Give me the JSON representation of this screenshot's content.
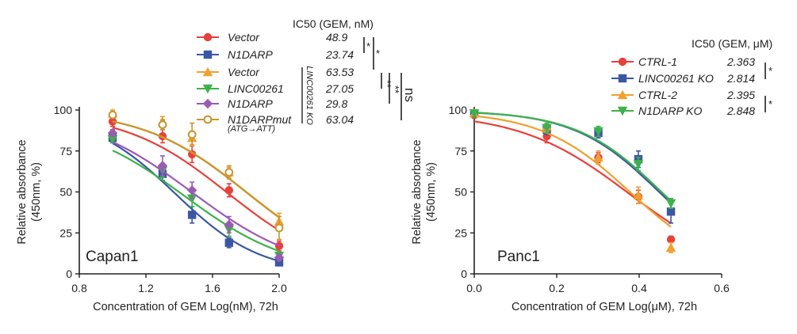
{
  "chart_data": [
    {
      "type": "line",
      "panel_label": "Capan1",
      "title": "",
      "xlabel": "Concentration of GEM Log(nM), 72h",
      "ylabel_line1": "Relative absorbance",
      "ylabel_line2": "(450nm, %)",
      "xlim": [
        0.8,
        2.0
      ],
      "ylim": [
        0,
        100
      ],
      "xticks": [
        "0.8",
        "1.2",
        "1.6",
        "2.0"
      ],
      "yticks": [
        "0",
        "25",
        "50",
        "75",
        "100"
      ],
      "legend_title": "IC50 (GEM, nM)",
      "group_label": "LINC00261 KO",
      "mut_note": "(ATG→ATT)",
      "x": [
        1.0,
        1.3,
        1.477,
        1.699,
        2.0
      ],
      "series": [
        {
          "name": "Vector",
          "ic50": "48.9",
          "color": "#e8403a",
          "marker": "circle",
          "values": [
            93,
            84,
            73,
            51,
            17
          ],
          "errors": [
            3,
            4,
            5,
            4,
            3
          ],
          "fit": {
            "top": 99,
            "bottom": 0,
            "logic50": 1.689,
            "hill": 1.4
          }
        },
        {
          "name": "N1DARP",
          "ic50": "23.74",
          "color": "#3b56a5",
          "marker": "square",
          "values": [
            83,
            61,
            36,
            19,
            7
          ],
          "errors": [
            3,
            4,
            5,
            3,
            2
          ],
          "fit": {
            "top": 98,
            "bottom": 0,
            "logic50": 1.376,
            "hill": 1.7
          }
        },
        {
          "name": "Vector",
          "ic50": "63.53",
          "color": "#f0a030",
          "marker": "triangle",
          "values": [
            98,
            93,
            83,
            62,
            32
          ],
          "errors": [
            2,
            3,
            4,
            3,
            5
          ],
          "fit": {
            "top": 100,
            "bottom": 0,
            "logic50": 1.803,
            "hill": 1.4
          }
        },
        {
          "name": "LINC00261",
          "ic50": "27.05",
          "color": "#3cb249",
          "marker": "triangle-down",
          "values": [
            82,
            63,
            46,
            27,
            11
          ],
          "errors": [
            2,
            4,
            5,
            4,
            2
          ],
          "fit": {
            "top": 95,
            "bottom": 0,
            "logic50": 1.432,
            "hill": 1.35
          }
        },
        {
          "name": "N1DARP",
          "ic50": "29.8",
          "color": "#9a5bb5",
          "marker": "diamond",
          "values": [
            86,
            66,
            51,
            30,
            10
          ],
          "errors": [
            2,
            6,
            5,
            5,
            2
          ],
          "fit": {
            "top": 100,
            "bottom": 0,
            "logic50": 1.474,
            "hill": 1.3
          }
        },
        {
          "name": "N1DARPmut",
          "ic50": "63.04",
          "color": "#c89530",
          "marker": "circle-open",
          "values": [
            97,
            91,
            85,
            62,
            28
          ],
          "errors": [
            2,
            3,
            7,
            4,
            7
          ],
          "fit": {
            "top": 100,
            "bottom": 0,
            "logic50": 1.8,
            "hill": 1.4
          }
        }
      ],
      "significance": [
        "*",
        "*",
        "**",
        "**",
        "ns"
      ]
    },
    {
      "type": "line",
      "panel_label": "Panc1",
      "title": "",
      "xlabel": "Concentration of GEM Log(μM), 72h",
      "ylabel_line1": "Relative absorbance",
      "ylabel_line2": "(450nm, %)",
      "xlim": [
        0.0,
        0.6
      ],
      "ylim": [
        0,
        100
      ],
      "xticks": [
        "0.0",
        "0.2",
        "0.4",
        "0.6"
      ],
      "yticks": [
        "0",
        "25",
        "50",
        "75",
        "100"
      ],
      "legend_title": "IC50 (GEM, μM)",
      "x": [
        0.0,
        0.176,
        0.301,
        0.398,
        0.477
      ],
      "series": [
        {
          "name": "CTRL-1",
          "ic50": "2.363",
          "color": "#e8403a",
          "marker": "circle",
          "values": [
            97,
            84,
            71,
            47,
            21
          ],
          "errors": [
            2,
            4,
            3,
            4,
            2
          ],
          "fit": {
            "top": 98.5,
            "bottom": 0,
            "logic50": 0.374,
            "hill": 3.3
          }
        },
        {
          "name": "LINC00261 KO",
          "ic50": "2.814",
          "color": "#3b56a5",
          "marker": "square",
          "values": [
            98,
            88,
            86,
            70,
            38
          ],
          "errors": [
            2,
            3,
            3,
            5,
            7
          ],
          "fit": {
            "top": 99.7,
            "bottom": 0,
            "logic50": 0.449,
            "hill": 4.2
          }
        },
        {
          "name": "CTRL-2",
          "ic50": "2.395",
          "color": "#f0a030",
          "marker": "triangle",
          "values": [
            98,
            90,
            71,
            48,
            16
          ],
          "errors": [
            2,
            3,
            4,
            5,
            3
          ],
          "fit": {
            "top": 99.3,
            "bottom": 0,
            "logic50": 0.379,
            "hill": 4.0
          }
        },
        {
          "name": "N1DARP KO",
          "ic50": "2.848",
          "color": "#3cb249",
          "marker": "triangle-down",
          "values": [
            98,
            89,
            87,
            67,
            43
          ],
          "errors": [
            2,
            3,
            3,
            4,
            3
          ],
          "fit": {
            "top": 99.5,
            "bottom": 0,
            "logic50": 0.455,
            "hill": 4.2
          }
        }
      ],
      "significance": [
        "*",
        "*"
      ]
    }
  ]
}
